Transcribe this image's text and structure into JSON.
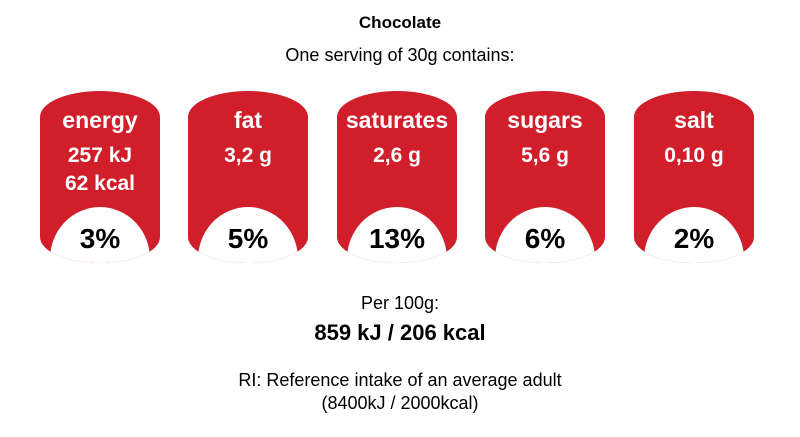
{
  "title": "Chocolate",
  "subtitle": "One serving of 30g contains:",
  "nutrients": [
    {
      "name": "energy",
      "amount": [
        "257 kJ",
        "62 kcal"
      ],
      "ri_percent": "3%"
    },
    {
      "name": "fat",
      "amount": [
        "3,2 g"
      ],
      "ri_percent": "5%"
    },
    {
      "name": "saturates",
      "amount": [
        "2,6 g"
      ],
      "ri_percent": "13%"
    },
    {
      "name": "sugars",
      "amount": [
        "5,6 g"
      ],
      "ri_percent": "6%"
    },
    {
      "name": "salt",
      "amount": [
        "0,10 g"
      ],
      "ri_percent": "2%"
    }
  ],
  "tile_color": "#d01f2b",
  "per_100g": {
    "label": "Per 100g:",
    "value": "859 kJ / 206 kcal"
  },
  "reference": {
    "line1": "RI: Reference intake of an average adult",
    "line2": "(8400kJ / 2000kcal)"
  }
}
